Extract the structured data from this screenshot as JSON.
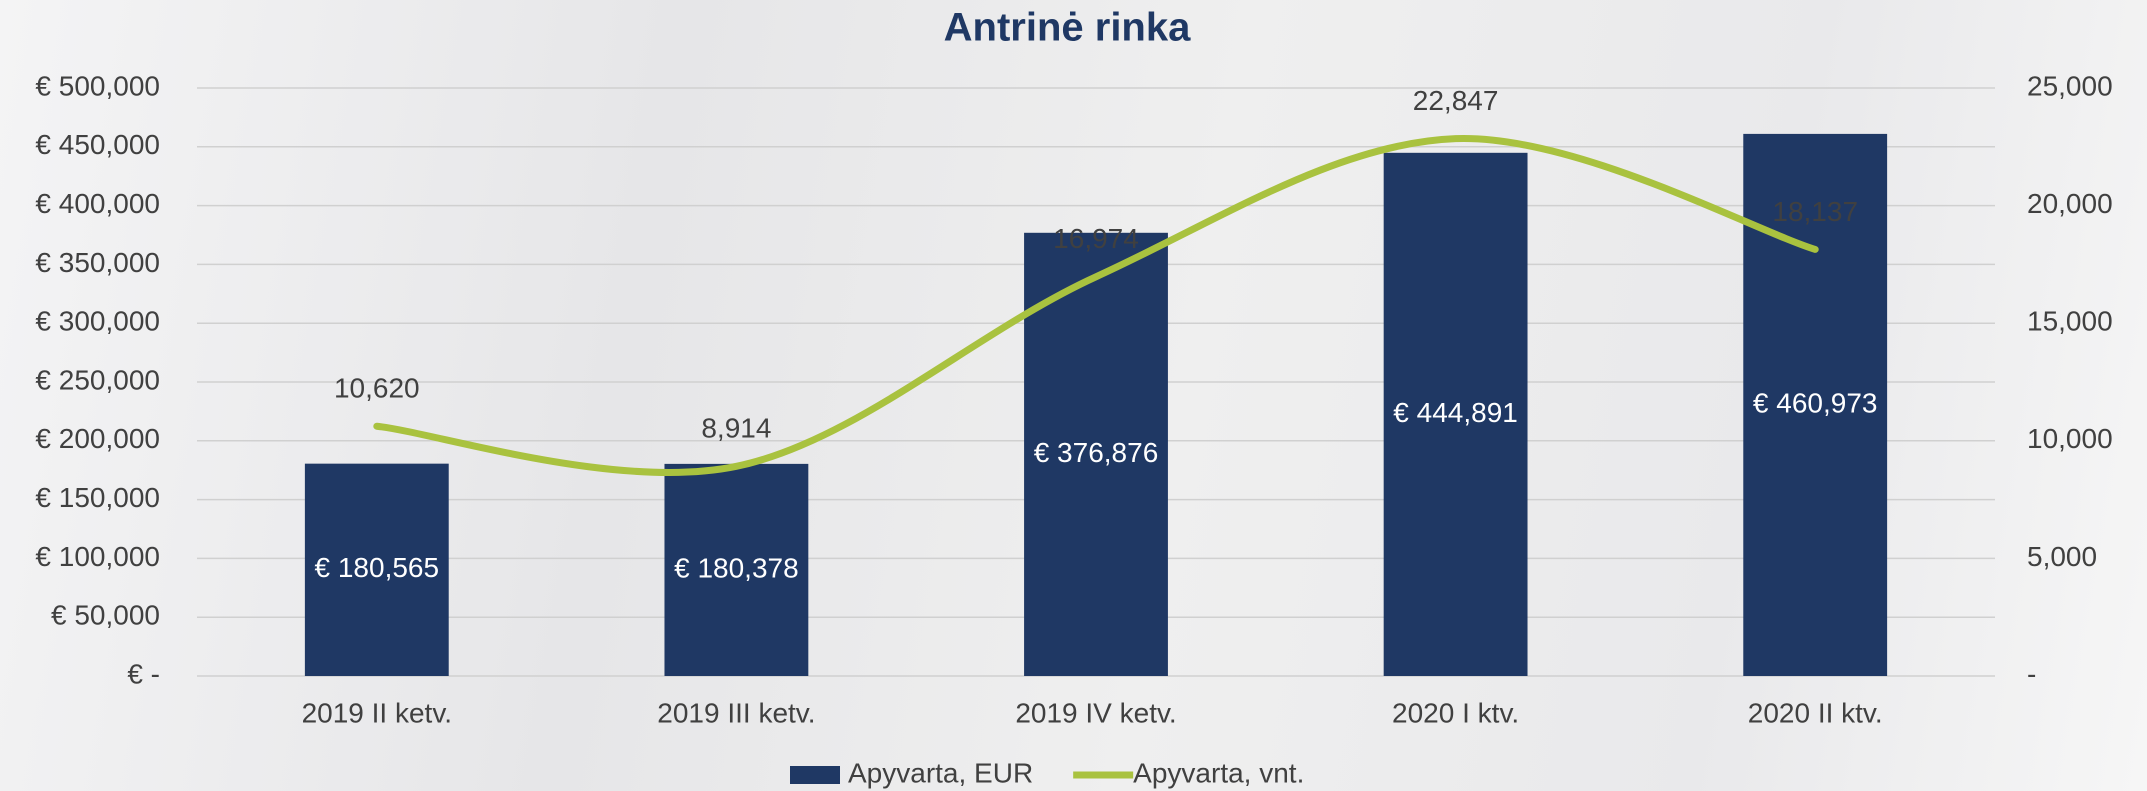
{
  "chart_data": {
    "type": "bar",
    "title": "Antrinė rinka",
    "categories": [
      "2019 II ketv.",
      "2019 III ketv.",
      "2019 IV ketv.",
      "2020 I ktv.",
      "2020 II ktv."
    ],
    "series": [
      {
        "name": "Apyvarta, EUR",
        "type": "bar",
        "color": "#1f3864",
        "values": [
          180565,
          180378,
          376876,
          444891,
          460973
        ],
        "value_labels": [
          "€ 180,565",
          "€ 180,378",
          "€ 376,876",
          "€ 444,891",
          "€ 460,973"
        ]
      },
      {
        "name": "Apyvarta, vnt.",
        "type": "line",
        "axis": "y2",
        "color": "#a9c23f",
        "values": [
          10620,
          8914,
          16974,
          22847,
          18137
        ],
        "value_labels": [
          "10,620",
          "8,914",
          "16,974",
          "22,847",
          "18,137"
        ]
      }
    ],
    "ylim": [
      0,
      500000
    ],
    "yticks": [
      {
        "value": 0,
        "label": "€ -"
      },
      {
        "value": 50000,
        "label": "€ 50,000"
      },
      {
        "value": 100000,
        "label": "€ 100,000"
      },
      {
        "value": 150000,
        "label": "€ 150,000"
      },
      {
        "value": 200000,
        "label": "€ 200,000"
      },
      {
        "value": 250000,
        "label": "€ 250,000"
      },
      {
        "value": 300000,
        "label": "€ 300,000"
      },
      {
        "value": 350000,
        "label": "€ 350,000"
      },
      {
        "value": 400000,
        "label": "€ 400,000"
      },
      {
        "value": 450000,
        "label": "€ 450,000"
      },
      {
        "value": 500000,
        "label": "€ 500,000"
      }
    ],
    "y2lim": [
      0,
      25000
    ],
    "y2ticks": [
      {
        "value": 0,
        "label": "-"
      },
      {
        "value": 5000,
        "label": "5,000"
      },
      {
        "value": 10000,
        "label": "10,000"
      },
      {
        "value": 15000,
        "label": "15,000"
      },
      {
        "value": 20000,
        "label": "20,000"
      },
      {
        "value": 25000,
        "label": "25,000"
      }
    ],
    "grid": true,
    "legend": "bottom"
  }
}
